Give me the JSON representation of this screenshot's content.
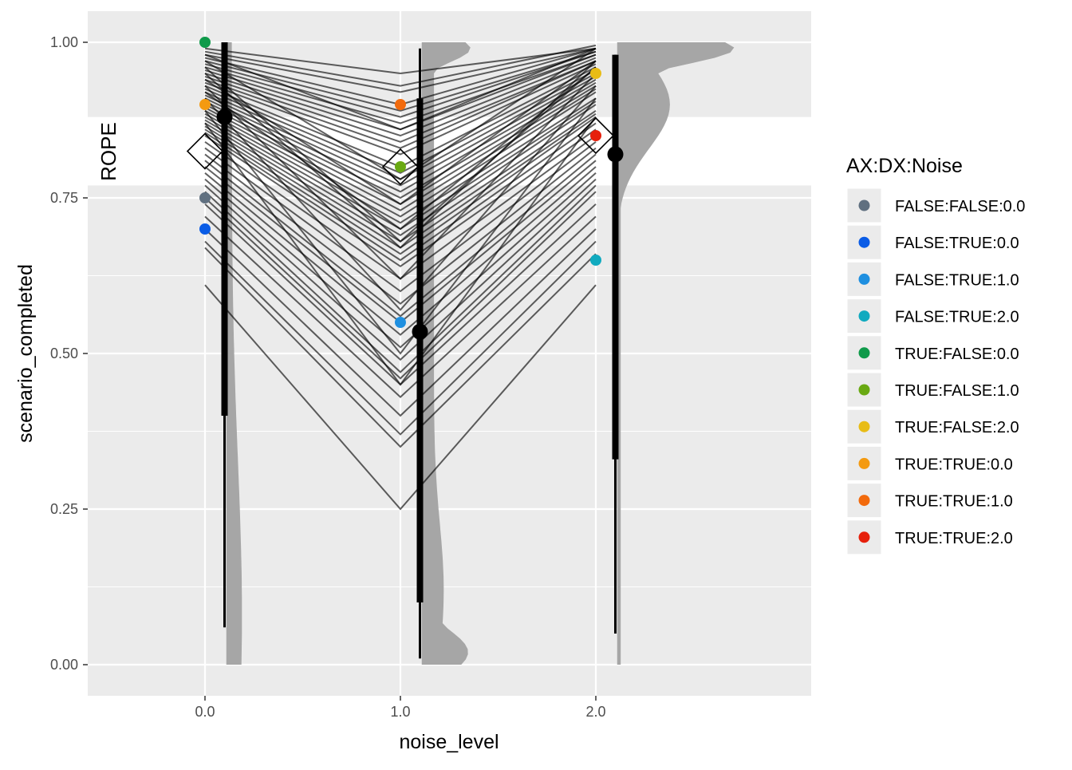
{
  "chart_data": {
    "type": "scatter",
    "xlabel": "noise_level",
    "ylabel": "scenario_completed",
    "xlim": [
      -0.6,
      3.1
    ],
    "ylim": [
      -0.05,
      1.05
    ],
    "x_ticks": [
      0,
      1,
      2
    ],
    "x_tick_labels": [
      "0.0",
      "1.0",
      "2.0"
    ],
    "y_ticks": [
      0,
      0.25,
      0.5,
      0.75,
      1.0
    ],
    "y_tick_labels": [
      "0.00",
      "0.25",
      "0.50",
      "0.75",
      "1.00"
    ],
    "grid": true,
    "rope": {
      "label": "ROPE",
      "ymin": 0.77,
      "ymax": 0.88
    },
    "legend": {
      "title": "AX:DX:Noise",
      "position": "right",
      "entries": [
        {
          "label": "FALSE:FALSE:0.0",
          "color": "#607080"
        },
        {
          "label": "FALSE:TRUE:0.0",
          "color": "#0a5ce6"
        },
        {
          "label": "FALSE:TRUE:1.0",
          "color": "#1e8fe0"
        },
        {
          "label": "FALSE:TRUE:2.0",
          "color": "#10aabf"
        },
        {
          "label": "TRUE:FALSE:0.0",
          "color": "#0f9a4a"
        },
        {
          "label": "TRUE:FALSE:1.0",
          "color": "#69a912"
        },
        {
          "label": "TRUE:FALSE:2.0",
          "color": "#e8bc16"
        },
        {
          "label": "TRUE:TRUE:0.0",
          "color": "#f49a10"
        },
        {
          "label": "TRUE:TRUE:1.0",
          "color": "#f26a0c"
        },
        {
          "label": "TRUE:TRUE:2.0",
          "color": "#e6200c"
        }
      ]
    },
    "observed_points": [
      {
        "group": "FALSE:FALSE:0.0",
        "x": 0,
        "y": 0.75
      },
      {
        "group": "FALSE:TRUE:0.0",
        "x": 0,
        "y": 0.7
      },
      {
        "group": "FALSE:TRUE:1.0",
        "x": 1,
        "y": 0.55
      },
      {
        "group": "FALSE:TRUE:2.0",
        "x": 2,
        "y": 0.65
      },
      {
        "group": "TRUE:FALSE:0.0",
        "x": 0,
        "y": 1.0
      },
      {
        "group": "TRUE:FALSE:1.0",
        "x": 1,
        "y": 0.8
      },
      {
        "group": "TRUE:FALSE:2.0",
        "x": 2,
        "y": 0.95
      },
      {
        "group": "TRUE:TRUE:0.0",
        "x": 0,
        "y": 0.9
      },
      {
        "group": "TRUE:TRUE:1.0",
        "x": 1,
        "y": 0.9
      },
      {
        "group": "TRUE:TRUE:2.0",
        "x": 2,
        "y": 0.85
      }
    ],
    "group_means": [
      {
        "x": 0,
        "y": 0.825
      },
      {
        "x": 1,
        "y": 0.8
      },
      {
        "x": 2,
        "y": 0.85
      }
    ],
    "posterior_summary": [
      {
        "x": 0.1,
        "median": 0.88,
        "inner": [
          0.4,
          1.0
        ],
        "outer": [
          0.06,
          1.0
        ]
      },
      {
        "x": 1.1,
        "median": 0.535,
        "inner": [
          0.1,
          0.91
        ],
        "outer": [
          0.01,
          0.99
        ]
      },
      {
        "x": 2.1,
        "median": 0.82,
        "inner": [
          0.33,
          0.98
        ],
        "outer": [
          0.05,
          0.98
        ]
      }
    ],
    "posterior_draws": [
      [
        0.99,
        0.95,
        0.99
      ],
      [
        0.985,
        0.93,
        0.995
      ],
      [
        0.98,
        0.92,
        0.99
      ],
      [
        0.975,
        0.9,
        0.99
      ],
      [
        0.97,
        0.89,
        0.985
      ],
      [
        0.965,
        0.88,
        0.985
      ],
      [
        0.96,
        0.87,
        0.98
      ],
      [
        0.955,
        0.86,
        0.98
      ],
      [
        0.95,
        0.85,
        0.975
      ],
      [
        0.945,
        0.84,
        0.97
      ],
      [
        0.94,
        0.83,
        0.97
      ],
      [
        0.935,
        0.82,
        0.965
      ],
      [
        0.93,
        0.8,
        0.96
      ],
      [
        0.925,
        0.79,
        0.955
      ],
      [
        0.92,
        0.78,
        0.95
      ],
      [
        0.915,
        0.77,
        0.945
      ],
      [
        0.91,
        0.76,
        0.94
      ],
      [
        0.905,
        0.75,
        0.935
      ],
      [
        0.9,
        0.74,
        0.93
      ],
      [
        0.895,
        0.73,
        0.925
      ],
      [
        0.89,
        0.72,
        0.92
      ],
      [
        0.885,
        0.71,
        0.91
      ],
      [
        0.88,
        0.7,
        0.905
      ],
      [
        0.875,
        0.69,
        0.9
      ],
      [
        0.87,
        0.68,
        0.89
      ],
      [
        0.865,
        0.67,
        0.885
      ],
      [
        0.86,
        0.66,
        0.88
      ],
      [
        0.855,
        0.65,
        0.87
      ],
      [
        0.85,
        0.64,
        0.86
      ],
      [
        0.84,
        0.62,
        0.85
      ],
      [
        0.83,
        0.6,
        0.84
      ],
      [
        0.82,
        0.58,
        0.83
      ],
      [
        0.81,
        0.56,
        0.82
      ],
      [
        0.8,
        0.55,
        0.81
      ],
      [
        0.79,
        0.53,
        0.8
      ],
      [
        0.78,
        0.51,
        0.79
      ],
      [
        0.77,
        0.49,
        0.78
      ],
      [
        0.76,
        0.47,
        0.77
      ],
      [
        0.75,
        0.46,
        0.76
      ],
      [
        0.74,
        0.45,
        0.74
      ],
      [
        0.72,
        0.43,
        0.72
      ],
      [
        0.7,
        0.4,
        0.7
      ],
      [
        0.68,
        0.37,
        0.68
      ],
      [
        0.67,
        0.35,
        0.66
      ],
      [
        0.61,
        0.25,
        0.61
      ],
      [
        0.96,
        0.68,
        0.96
      ],
      [
        0.95,
        0.67,
        0.97
      ],
      [
        0.93,
        0.62,
        0.95
      ],
      [
        0.91,
        0.57,
        0.93
      ],
      [
        0.89,
        0.5,
        0.91
      ],
      [
        0.87,
        0.45,
        0.88
      ],
      [
        0.97,
        0.78,
        0.99
      ],
      [
        0.98,
        0.86,
        0.99
      ],
      [
        0.94,
        0.74,
        0.97
      ],
      [
        0.92,
        0.7,
        0.96
      ]
    ],
    "density_curves": [
      {
        "x": 0.15,
        "width_scale": 0.08,
        "shape": "low",
        "y_from": 0.0,
        "y_to": 1.0
      },
      {
        "x": 1.15,
        "width_scale": 0.25,
        "shape": "spread",
        "y_from": 0.0,
        "y_to": 1.0
      },
      {
        "x": 2.15,
        "width_scale": 0.6,
        "shape": "high",
        "y_from": 0.0,
        "y_to": 1.0
      }
    ]
  }
}
